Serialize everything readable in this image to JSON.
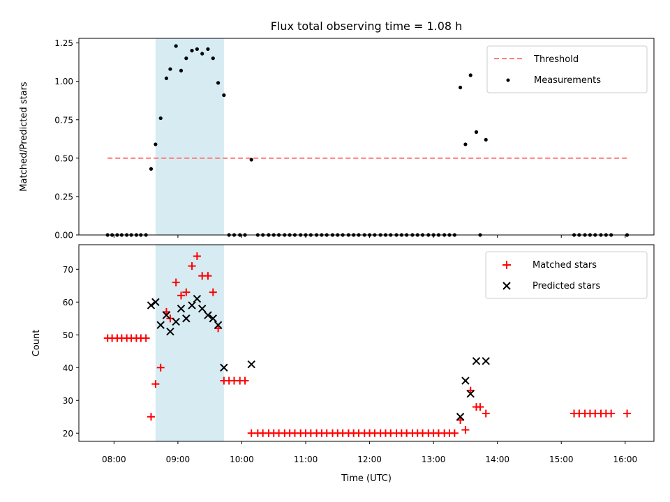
{
  "chart_data": {
    "title": "Flux total observing time = 1.08 h",
    "type": "scatter",
    "shared_x": {
      "label": "Time (UTC)",
      "range_hours": [
        7.45,
        16.45
      ],
      "ticks": [
        8,
        9,
        10,
        11,
        12,
        13,
        14,
        15,
        16
      ],
      "tick_labels": [
        "08:00",
        "09:00",
        "10:00",
        "11:00",
        "12:00",
        "13:00",
        "14:00",
        "15:00",
        "16:00"
      ]
    },
    "shaded_region_hours": [
      8.65,
      9.72
    ],
    "shade_color": "#add8e6",
    "top": {
      "ylabel": "Matched/Predicted stars",
      "ylim": [
        0,
        1.28
      ],
      "yticks": [
        0,
        0.25,
        0.5,
        0.75,
        1.0,
        1.25
      ],
      "ytick_labels": [
        "0.00",
        "0.25",
        "0.50",
        "0.75",
        "1.00",
        "1.25"
      ],
      "threshold": {
        "name": "Threshold",
        "value": 0.5,
        "x_range": [
          7.9,
          16.05
        ],
        "color": "#ff7f7f"
      },
      "measurements": {
        "name": "Measurements",
        "color": "#000000",
        "x": [
          7.9,
          7.97,
          8.05,
          8.12,
          8.2,
          8.27,
          8.35,
          8.42,
          8.5,
          8.58,
          8.65,
          8.73,
          8.82,
          8.88,
          8.97,
          9.05,
          9.13,
          9.22,
          9.3,
          9.38,
          9.47,
          9.55,
          9.63,
          9.72,
          9.8,
          9.88,
          9.97,
          10.05,
          10.15,
          10.25,
          10.33,
          10.42,
          10.5,
          10.58,
          10.67,
          10.75,
          10.83,
          10.92,
          11.0,
          11.08,
          11.17,
          11.25,
          11.33,
          11.42,
          11.5,
          11.58,
          11.67,
          11.75,
          11.83,
          11.92,
          12.0,
          12.08,
          12.17,
          12.25,
          12.33,
          12.42,
          12.5,
          12.58,
          12.67,
          12.75,
          12.83,
          12.92,
          13.0,
          13.08,
          13.17,
          13.25,
          13.33,
          13.42,
          13.5,
          13.58,
          13.67,
          13.73,
          13.82,
          15.2,
          15.28,
          15.37,
          15.45,
          15.53,
          15.62,
          15.7,
          15.78,
          16.03
        ],
        "y": [
          0,
          0,
          0,
          0,
          0,
          0,
          0,
          0,
          0,
          0.43,
          0.59,
          0.76,
          1.02,
          1.08,
          1.23,
          1.07,
          1.15,
          1.2,
          1.21,
          1.18,
          1.21,
          1.15,
          0.99,
          0.91,
          0,
          0,
          0,
          0,
          0.49,
          0,
          0,
          0,
          0,
          0,
          0,
          0,
          0,
          0,
          0,
          0,
          0,
          0,
          0,
          0,
          0,
          0,
          0,
          0,
          0,
          0,
          0,
          0,
          0,
          0,
          0,
          0,
          0,
          0,
          0,
          0,
          0,
          0,
          0,
          0,
          0,
          0,
          0,
          0.96,
          0.59,
          1.04,
          0.67,
          0,
          0.62,
          0,
          0,
          0,
          0,
          0,
          0,
          0,
          0,
          0
        ]
      },
      "legend": [
        "Threshold",
        "Measurements"
      ]
    },
    "bottom": {
      "ylabel": "Count",
      "ylim": [
        17.5,
        77.5
      ],
      "yticks": [
        20,
        30,
        40,
        50,
        60,
        70
      ],
      "ytick_labels": [
        "20",
        "30",
        "40",
        "50",
        "60",
        "70"
      ],
      "series": [
        {
          "name": "Matched stars",
          "marker": "+",
          "color": "#ff0000",
          "x": [
            7.9,
            7.97,
            8.05,
            8.12,
            8.2,
            8.27,
            8.35,
            8.42,
            8.5,
            8.58,
            8.65,
            8.73,
            8.82,
            8.88,
            8.97,
            9.05,
            9.13,
            9.22,
            9.3,
            9.38,
            9.47,
            9.55,
            9.63,
            9.72,
            9.8,
            9.88,
            9.97,
            10.05,
            10.15,
            10.25,
            10.33,
            10.42,
            10.5,
            10.58,
            10.67,
            10.75,
            10.83,
            10.92,
            11.0,
            11.08,
            11.17,
            11.25,
            11.33,
            11.42,
            11.5,
            11.58,
            11.67,
            11.75,
            11.83,
            11.92,
            12.0,
            12.08,
            12.17,
            12.25,
            12.33,
            12.42,
            12.5,
            12.58,
            12.67,
            12.75,
            12.83,
            12.92,
            13.0,
            13.08,
            13.17,
            13.25,
            13.33,
            13.42,
            13.5,
            13.58,
            13.67,
            13.73,
            13.82,
            15.2,
            15.28,
            15.37,
            15.45,
            15.53,
            15.62,
            15.7,
            15.78,
            16.03
          ],
          "y": [
            49,
            49,
            49,
            49,
            49,
            49,
            49,
            49,
            49,
            25,
            35,
            40,
            57,
            55,
            66,
            62,
            63,
            71,
            74,
            68,
            68,
            63,
            52,
            36,
            36,
            36,
            36,
            36,
            20,
            20,
            20,
            20,
            20,
            20,
            20,
            20,
            20,
            20,
            20,
            20,
            20,
            20,
            20,
            20,
            20,
            20,
            20,
            20,
            20,
            20,
            20,
            20,
            20,
            20,
            20,
            20,
            20,
            20,
            20,
            20,
            20,
            20,
            20,
            20,
            20,
            20,
            20,
            24,
            21,
            33,
            28,
            28,
            26,
            26,
            26,
            26,
            26,
            26,
            26,
            26,
            26,
            26
          ]
        },
        {
          "name": "Predicted stars",
          "marker": "x",
          "color": "#000000",
          "x": [
            8.58,
            8.65,
            8.73,
            8.82,
            8.88,
            8.97,
            9.05,
            9.13,
            9.22,
            9.3,
            9.38,
            9.47,
            9.55,
            9.63,
            9.72,
            10.15,
            13.42,
            13.5,
            13.58,
            13.67,
            13.82
          ],
          "y": [
            59,
            60,
            53,
            56,
            51,
            54,
            58,
            55,
            59,
            61,
            58,
            56,
            55,
            53,
            40,
            41,
            25,
            36,
            32,
            42,
            42
          ]
        }
      ],
      "legend": [
        "Matched stars",
        "Predicted stars"
      ]
    }
  }
}
